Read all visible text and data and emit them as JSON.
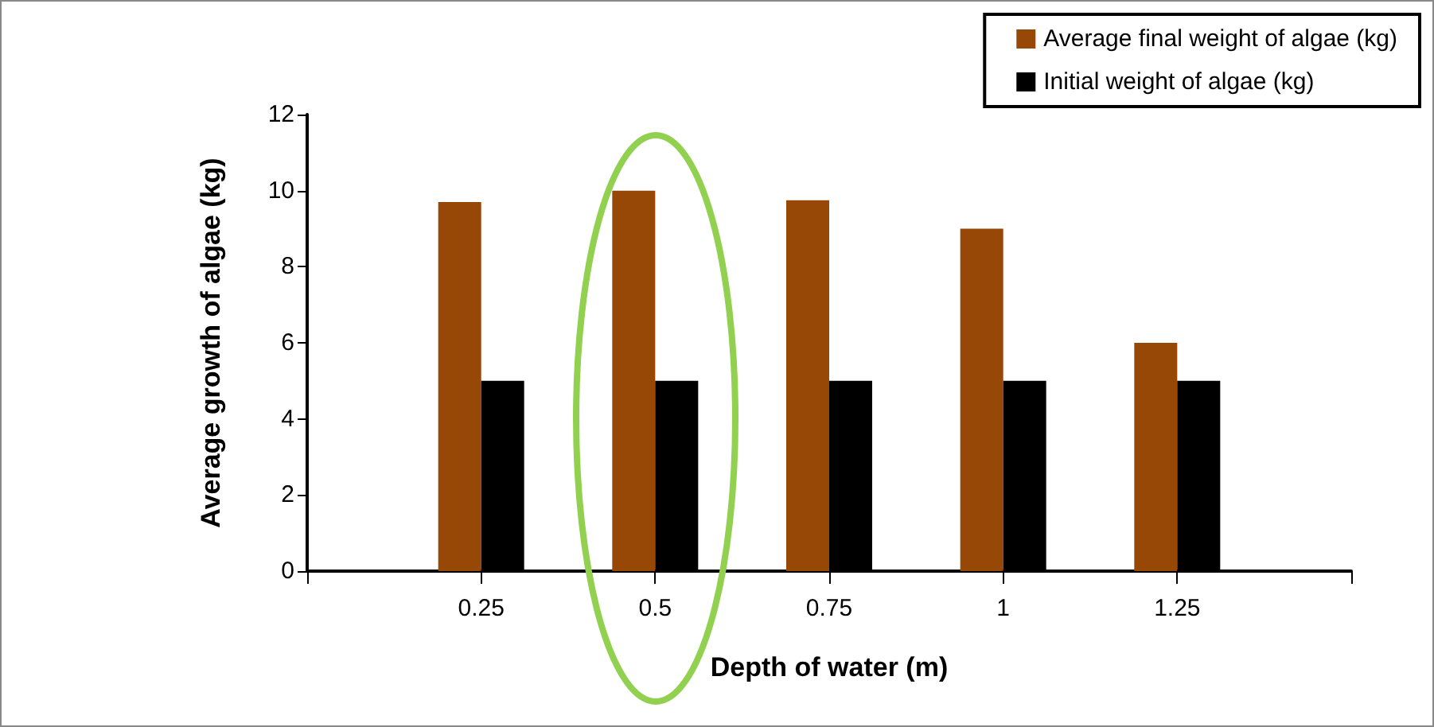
{
  "chart_data": {
    "type": "bar",
    "xlabel": "Depth of water (m)",
    "ylabel": "Average growth of algae (kg)",
    "categories": [
      null,
      "0.25",
      "0.5",
      "0.75",
      "1",
      "1.25",
      null
    ],
    "series": [
      {
        "name": "Average final weight of algae (kg)",
        "color": "#974706",
        "values": [
          null,
          9.7,
          10.0,
          9.75,
          9.0,
          6.0,
          null
        ]
      },
      {
        "name": "Initial weight of algae (kg)",
        "color": "#000000",
        "values": [
          null,
          5,
          5,
          5,
          5,
          5,
          null
        ]
      }
    ],
    "ylim": [
      0,
      12
    ],
    "yticks": [
      0,
      2,
      4,
      6,
      8,
      10,
      12
    ],
    "grid": false,
    "legend": "top right"
  }
}
